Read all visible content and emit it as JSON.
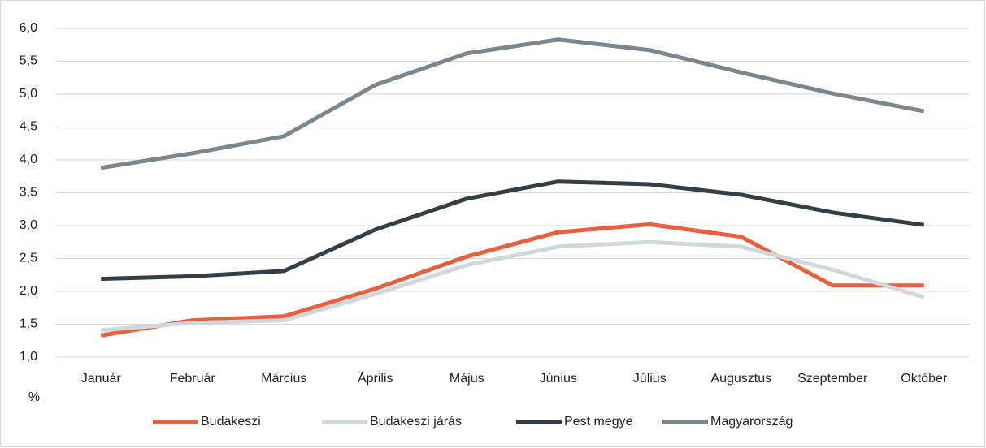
{
  "chart_data": {
    "type": "line",
    "y_label": "%",
    "categories": [
      "Január",
      "Február",
      "Március",
      "Április",
      "Május",
      "Június",
      "Július",
      "Augusztus",
      "Szeptember",
      "Október"
    ],
    "series": [
      {
        "name": "Budakeszi",
        "color": "#e8603c",
        "values": [
          1.33,
          1.56,
          1.62,
          2.04,
          2.53,
          2.9,
          3.02,
          2.83,
          2.09,
          2.09
        ]
      },
      {
        "name": "Budakeszi járás",
        "color": "#d0d8de",
        "values": [
          1.41,
          1.52,
          1.56,
          1.96,
          2.4,
          2.68,
          2.75,
          2.68,
          2.33,
          1.91
        ]
      },
      {
        "name": "Pest megye",
        "color": "#333f48",
        "values": [
          2.19,
          2.23,
          2.31,
          2.94,
          3.41,
          3.67,
          3.63,
          3.47,
          3.2,
          3.01
        ]
      },
      {
        "name": "Magyarország",
        "color": "#7a8791",
        "values": [
          3.88,
          4.1,
          4.36,
          5.14,
          5.62,
          5.83,
          5.67,
          5.33,
          5.01,
          4.74
        ]
      }
    ],
    "ylim": [
      1,
      6
    ],
    "yticks": [
      {
        "value": 1,
        "label": "1,0"
      },
      {
        "value": 1.5,
        "label": "1,5"
      },
      {
        "value": 2,
        "label": "2,0"
      },
      {
        "value": 2.5,
        "label": "2,5"
      },
      {
        "value": 3,
        "label": "3,0"
      },
      {
        "value": 3.5,
        "label": "3,5"
      },
      {
        "value": 4,
        "label": "4,0"
      },
      {
        "value": 4.5,
        "label": "4,5"
      },
      {
        "value": 5,
        "label": "5,0"
      },
      {
        "value": 5.5,
        "label": "5,5"
      },
      {
        "value": 6,
        "label": "6,0"
      }
    ],
    "grid": true,
    "legend": "bottom"
  }
}
